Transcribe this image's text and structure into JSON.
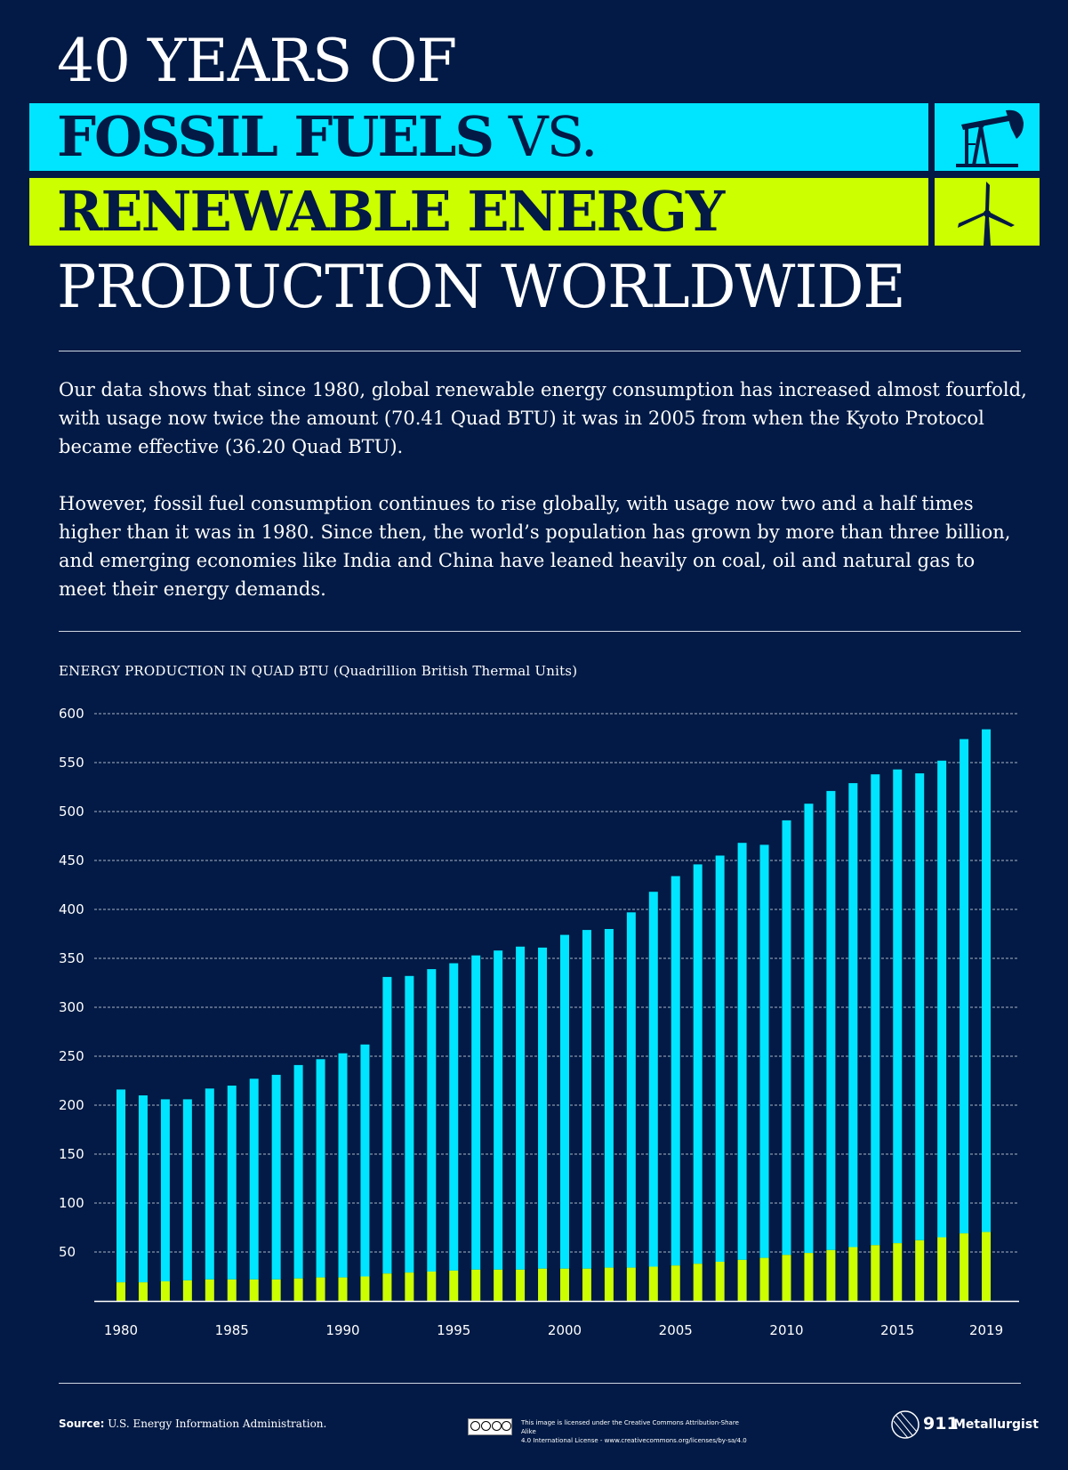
{
  "title": {
    "line1": "40 YEARS OF",
    "line2_bold": "FOSSIL FUELS",
    "line2_light": " VS.",
    "line3": "RENEWABLE ENERGY",
    "line4": "PRODUCTION WORLDWIDE"
  },
  "icons": {
    "fossil": "oil-pump-jack-icon",
    "renewable": "wind-turbine-icon"
  },
  "colors": {
    "background": "#021a45",
    "fossil": "#00e5ff",
    "renewable": "#ccff00",
    "text": "#ffffff"
  },
  "intro": {
    "paragraph1": "Our data shows that since 1980, global renewable energy consumption has increased almost fourfold, with usage now twice the amount (70.41 Quad BTU) it was in 2005 from when the Kyoto Protocol became effective (36.20 Quad BTU).",
    "paragraph2": "However, fossil fuel consumption continues to rise globally, with usage now two and a half times higher than it was in 1980. Since then, the world’s population has grown by more than three billion, and emerging economies like India and China have leaned heavily on coal, oil and natural gas to meet their energy demands."
  },
  "chart_data": {
    "type": "bar",
    "title": "ENERGY PRODUCTION IN QUAD BTU (Quadrillion British Thermal Units)",
    "xlabel": "",
    "ylabel": "",
    "ylim": [
      0,
      600
    ],
    "yticks": [
      50,
      100,
      150,
      200,
      250,
      300,
      350,
      400,
      450,
      500,
      550,
      600
    ],
    "xticks": [
      "1980",
      "1985",
      "1990",
      "1995",
      "2000",
      "2005",
      "2010",
      "2015",
      "2019"
    ],
    "grid": true,
    "categories": [
      "1980",
      "1981",
      "1982",
      "1983",
      "1984",
      "1985",
      "1986",
      "1987",
      "1988",
      "1989",
      "1990",
      "1991",
      "1992",
      "1993",
      "1994",
      "1995",
      "1996",
      "1997",
      "1998",
      "1999",
      "2000",
      "2001",
      "2002",
      "2003",
      "2004",
      "2005",
      "2006",
      "2007",
      "2008",
      "2009",
      "2010",
      "2011",
      "2012",
      "2013",
      "2014",
      "2015",
      "2016",
      "2017",
      "2018",
      "2019"
    ],
    "series": [
      {
        "name": "Fossil fuels",
        "color": "#00e5ff",
        "values": [
          216,
          210,
          206,
          206,
          217,
          220,
          227,
          231,
          241,
          247,
          253,
          262,
          331,
          332,
          339,
          345,
          353,
          358,
          362,
          361,
          374,
          379,
          380,
          397,
          418,
          434,
          446,
          455,
          468,
          466,
          491,
          508,
          521,
          529,
          538,
          543,
          539,
          552,
          574,
          584
        ]
      },
      {
        "name": "Renewable energy",
        "color": "#ccff00",
        "values": [
          19,
          19,
          20,
          21,
          22,
          22,
          22,
          22,
          23,
          24,
          24,
          25,
          28,
          29,
          30,
          31,
          32,
          32,
          32,
          33,
          33,
          33,
          34,
          34,
          35,
          36.2,
          38,
          40,
          42,
          44,
          47,
          49,
          52,
          55,
          57,
          59,
          62,
          65,
          69,
          70.41
        ]
      }
    ]
  },
  "footer": {
    "source_label": "Source:",
    "source_text": " U.S. Energy Information Administration.",
    "license_line1": "This image is licensed under the Creative Commons Attribution-Share Alike",
    "license_line2": "4.0 International License - www.creativecommons.org/licenses/by-sa/4.0",
    "logo_number": "911",
    "logo_name": "Metallurgist"
  }
}
